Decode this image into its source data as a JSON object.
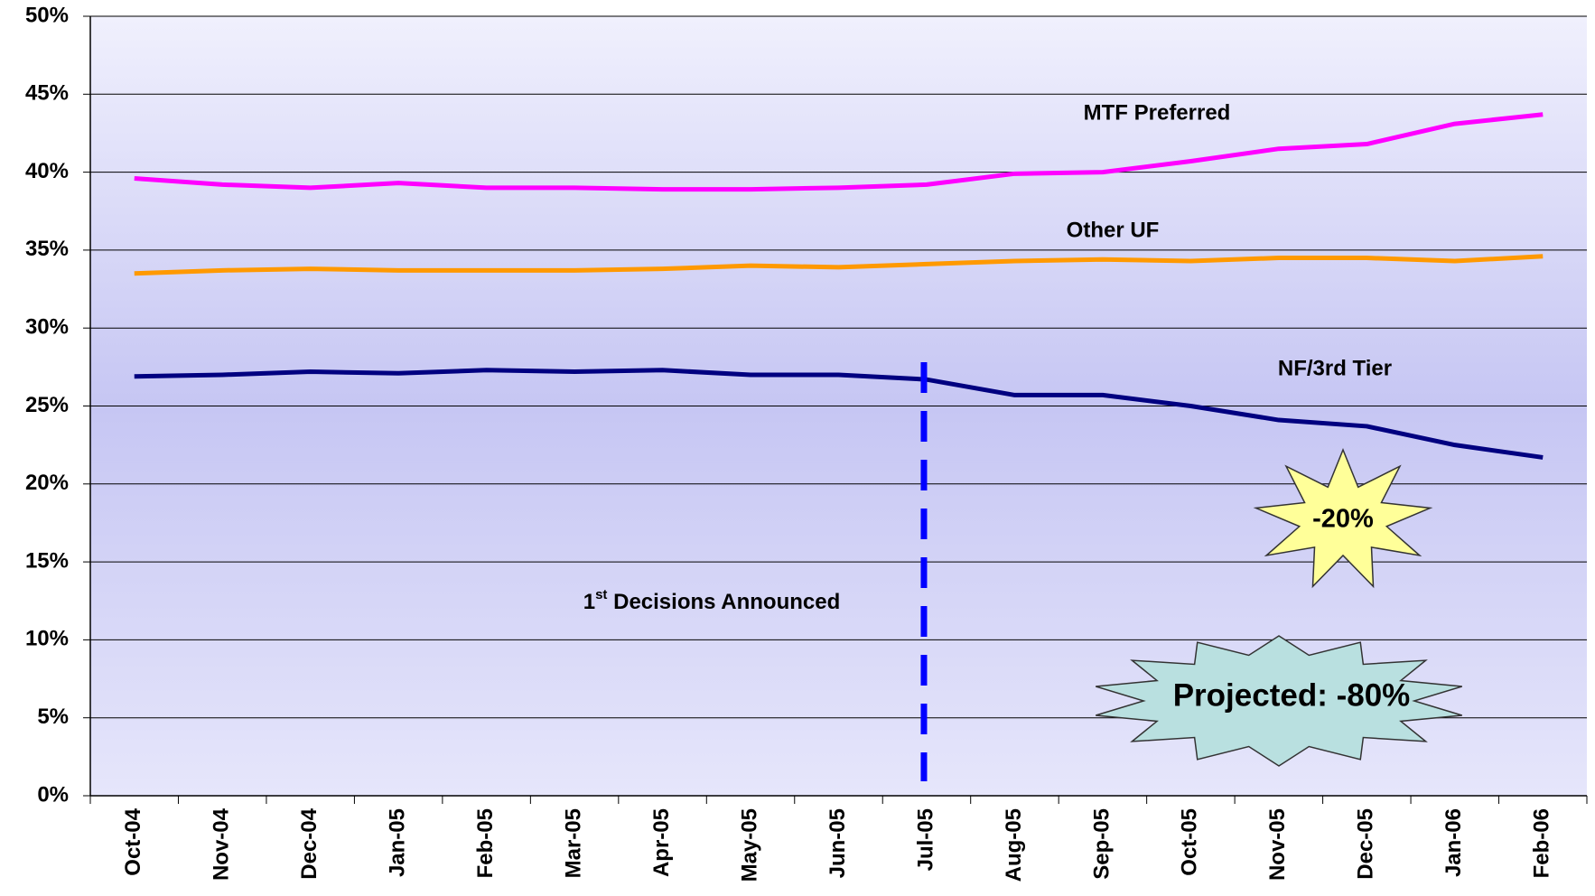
{
  "chart_data": {
    "type": "line",
    "categories": [
      "Oct-04",
      "Nov-04",
      "Dec-04",
      "Jan-05",
      "Feb-05",
      "Mar-05",
      "Apr-05",
      "May-05",
      "Jun-05",
      "Jul-05",
      "Aug-05",
      "Sep-05",
      "Oct-05",
      "Nov-05",
      "Dec-05",
      "Jan-06",
      "Feb-06"
    ],
    "series": [
      {
        "name": "MTF Preferred",
        "color": "#ff00ff",
        "values": [
          39.6,
          39.2,
          39.0,
          39.3,
          39.0,
          39.0,
          38.9,
          38.9,
          39.0,
          39.2,
          39.9,
          40.0,
          40.7,
          41.5,
          41.8,
          43.1,
          43.7
        ]
      },
      {
        "name": "Other UF",
        "color": "#ff9900",
        "values": [
          33.5,
          33.7,
          33.8,
          33.7,
          33.7,
          33.7,
          33.8,
          34.0,
          33.9,
          34.1,
          34.3,
          34.4,
          34.3,
          34.5,
          34.5,
          34.3,
          34.6
        ]
      },
      {
        "name": "NF/3rd Tier",
        "color": "#000080",
        "values": [
          26.9,
          27.0,
          27.2,
          27.1,
          27.3,
          27.2,
          27.3,
          27.0,
          27.0,
          26.7,
          25.7,
          25.7,
          25.0,
          24.1,
          23.7,
          22.5,
          21.7
        ]
      }
    ],
    "ylim": [
      0,
      50
    ],
    "yticks": [
      {
        "value": 0,
        "label": "0%"
      },
      {
        "value": 5,
        "label": "5%"
      },
      {
        "value": 10,
        "label": "10%"
      },
      {
        "value": 15,
        "label": "15%"
      },
      {
        "value": 20,
        "label": "20%"
      },
      {
        "value": 25,
        "label": "25%"
      },
      {
        "value": 30,
        "label": "30%"
      },
      {
        "value": 35,
        "label": "35%"
      },
      {
        "value": 40,
        "label": "40%"
      },
      {
        "value": 45,
        "label": "45%"
      },
      {
        "value": 50,
        "label": "50%"
      }
    ],
    "grid": true,
    "event": {
      "category": "Jul-05",
      "label_main": "1",
      "label_sup": "st",
      "label_rest": " Decisions Announced",
      "color": "#0000ff"
    },
    "callouts": [
      "-20%",
      "Projected: -80%"
    ]
  }
}
